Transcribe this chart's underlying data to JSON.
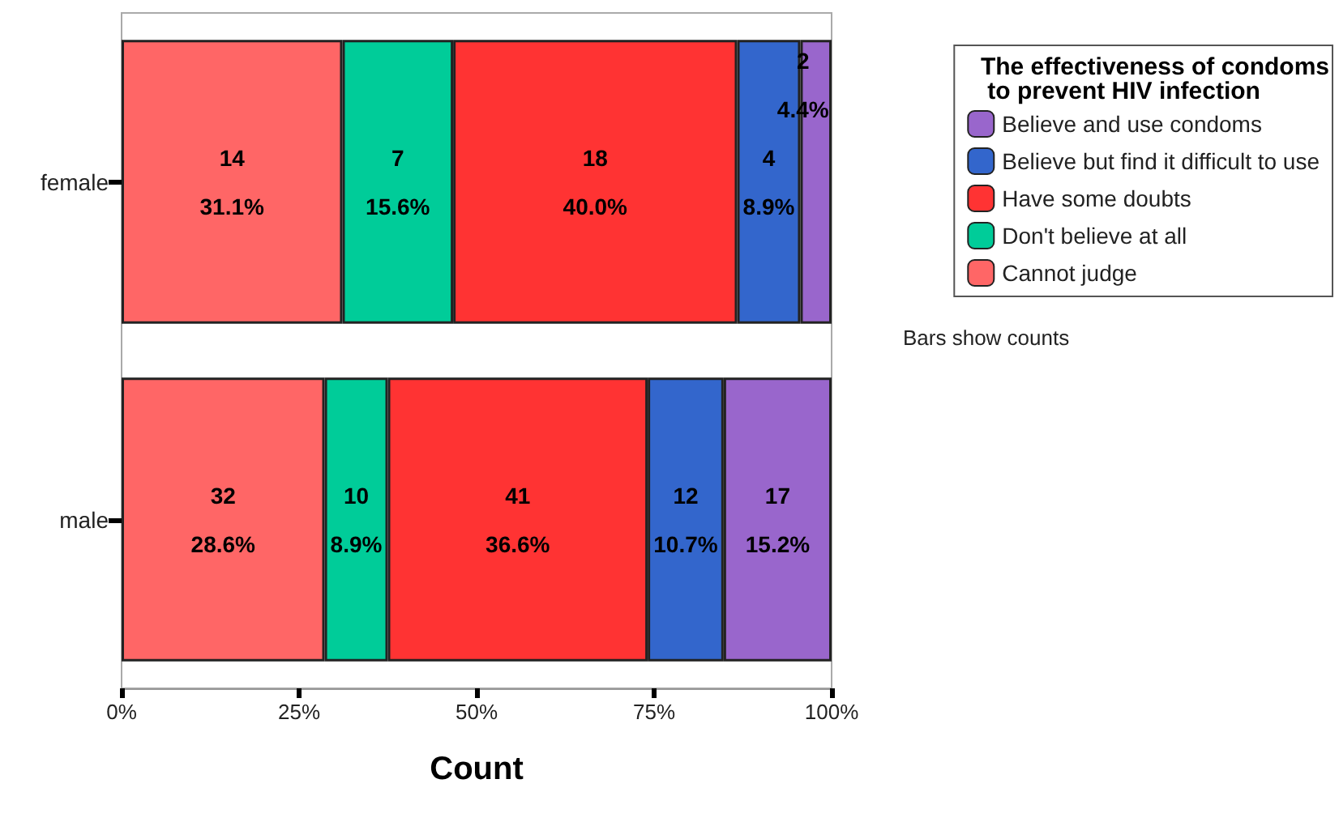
{
  "chart_data": {
    "type": "bar",
    "orientation": "horizontal",
    "stacked": true,
    "xlabel": "Count",
    "legend_title": "The effectiveness of condoms\n to prevent HIV infection",
    "legend": "top right",
    "grid": false,
    "categories": [
      "female",
      "male"
    ],
    "xlim": [
      0,
      100
    ],
    "xticks": [
      {
        "value": 0,
        "label": "0%"
      },
      {
        "value": 25,
        "label": "25%"
      },
      {
        "value": 50,
        "label": "50%"
      },
      {
        "value": 75,
        "label": "75%"
      },
      {
        "value": 100,
        "label": "100%"
      }
    ],
    "series": [
      {
        "name": "Cannot judge",
        "color": "#ff6666",
        "values": [
          31.1,
          28.6
        ],
        "value_labels": [
          "14\n31.1%",
          "32\n28.6%"
        ]
      },
      {
        "name": "Don't believe at all",
        "color": "#00cc99",
        "values": [
          15.6,
          8.9
        ],
        "value_labels": [
          "7\n15.6%",
          "10\n8.9%"
        ]
      },
      {
        "name": "Have some doubts",
        "color": "#ff3333",
        "values": [
          40.0,
          36.6
        ],
        "value_labels": [
          "18\n40.0%",
          "41\n36.6%"
        ]
      },
      {
        "name": "Believe but find it difficult to use",
        "color": "#3366cc",
        "values": [
          8.9,
          10.7
        ],
        "value_labels": [
          "4\n8.9%",
          "12\n10.7%"
        ]
      },
      {
        "name": "Believe and use condoms",
        "color": "#9966cc",
        "values": [
          4.4,
          15.2
        ],
        "value_labels": [
          "2\n4.4%",
          "17\n15.2%"
        ]
      }
    ],
    "annotations": [
      "Bars show counts"
    ]
  }
}
